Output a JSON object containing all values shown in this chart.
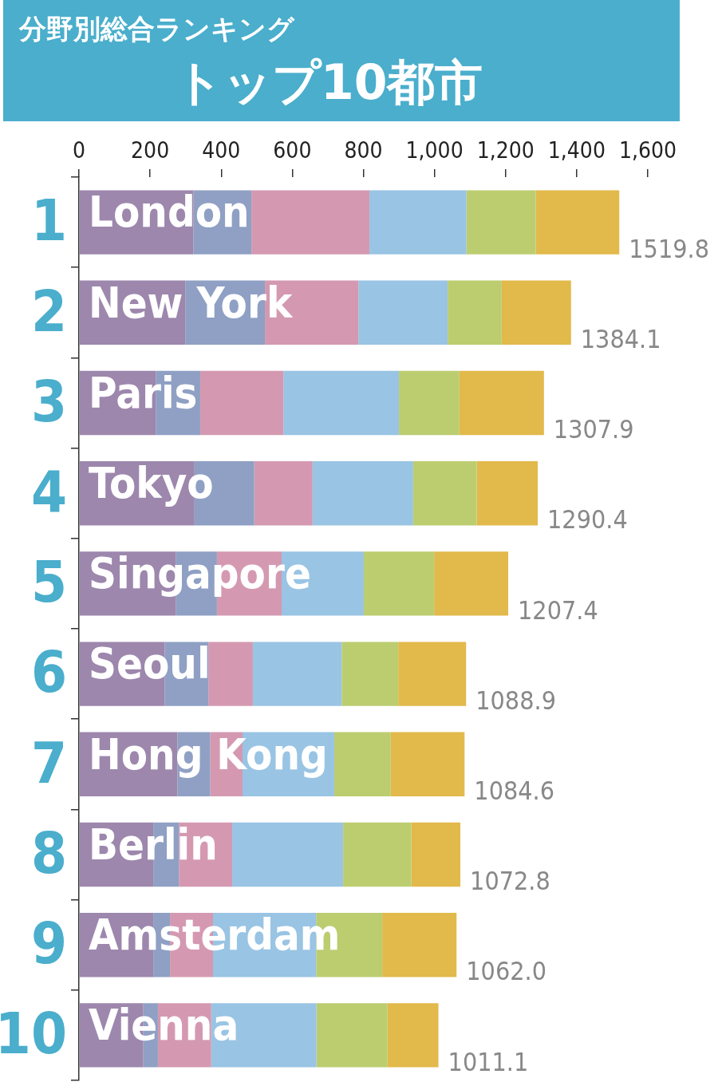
{
  "chart_data": {
    "type": "bar",
    "orientation": "horizontal",
    "stacked": true,
    "title": "分野別総合ランキング",
    "subtitle": "トップ10都市",
    "categories": [
      "London",
      "New York",
      "Paris",
      "Tokyo",
      "Singapore",
      "Seoul",
      "Hong Kong",
      "Berlin",
      "Amsterdam",
      "Vienna"
    ],
    "series": [
      {
        "color": "#9d87ad",
        "values": [
          322,
          299,
          216,
          325,
          272,
          241,
          277,
          209,
          209,
          181
        ]
      },
      {
        "color": "#8fa0c4",
        "values": [
          163,
          224,
          125,
          168,
          116,
          123,
          92,
          72,
          47,
          41
        ]
      },
      {
        "color": "#d499b1",
        "values": [
          332,
          263,
          234,
          164,
          182,
          125,
          91,
          150,
          121,
          150
        ]
      },
      {
        "color": "#99c4e4",
        "values": [
          273,
          251,
          325,
          283,
          231,
          250,
          258,
          312,
          290,
          296
        ]
      },
      {
        "color": "#bccd70",
        "values": [
          195,
          152,
          170,
          179,
          198,
          159,
          159,
          192,
          186,
          200
        ]
      },
      {
        "color": "#e2b94b",
        "values": [
          234.8,
          195.1,
          237.9,
          171.4,
          208.4,
          190.9,
          207.6,
          137.8,
          209,
          143.1
        ]
      }
    ],
    "xlim": [
      0,
      1600
    ],
    "xticks": [
      0,
      200,
      400,
      600,
      800,
      {
        "value": 1000,
        "label": "1,000"
      },
      {
        "value": 1200,
        "label": "1,200"
      },
      {
        "value": 1400,
        "label": "1,400"
      },
      {
        "value": 1600,
        "label": "1,600"
      }
    ],
    "totals": [
      "1519.8",
      "1384.1",
      "1307.9",
      "1290.4",
      "1207.4",
      "1088.9",
      "1084.6",
      "1072.8",
      "1062.0",
      "1011.1"
    ],
    "annotations": [
      "1",
      "2",
      "3",
      "4",
      "5",
      "6",
      "7",
      "8",
      "9",
      "10"
    ]
  }
}
